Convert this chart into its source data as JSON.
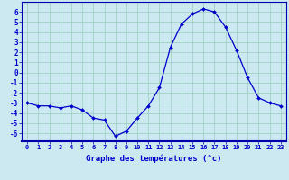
{
  "hours": [
    0,
    1,
    2,
    3,
    4,
    5,
    6,
    7,
    8,
    9,
    10,
    11,
    12,
    13,
    14,
    15,
    16,
    17,
    18,
    19,
    20,
    21,
    22,
    23
  ],
  "temperatures": [
    -3.0,
    -3.3,
    -3.3,
    -3.5,
    -3.3,
    -3.7,
    -4.5,
    -4.7,
    -6.3,
    -5.8,
    -4.5,
    -3.3,
    -1.5,
    2.5,
    4.8,
    5.8,
    6.3,
    6.0,
    4.5,
    2.2,
    -0.5,
    -2.5,
    -3.0,
    -3.3
  ],
  "ylim": [
    -6.8,
    7.0
  ],
  "yticks": [
    -6,
    -5,
    -4,
    -3,
    -2,
    -1,
    0,
    1,
    2,
    3,
    4,
    5,
    6
  ],
  "xlabel": "Graphe des températures (°c)",
  "line_color": "#0000cc",
  "bg_color": "#cce8f0",
  "grid_color": "#99ccbb",
  "axis_label_color": "#0000cc",
  "tick_label_color": "#0000cc",
  "separator_color": "#0000aa"
}
